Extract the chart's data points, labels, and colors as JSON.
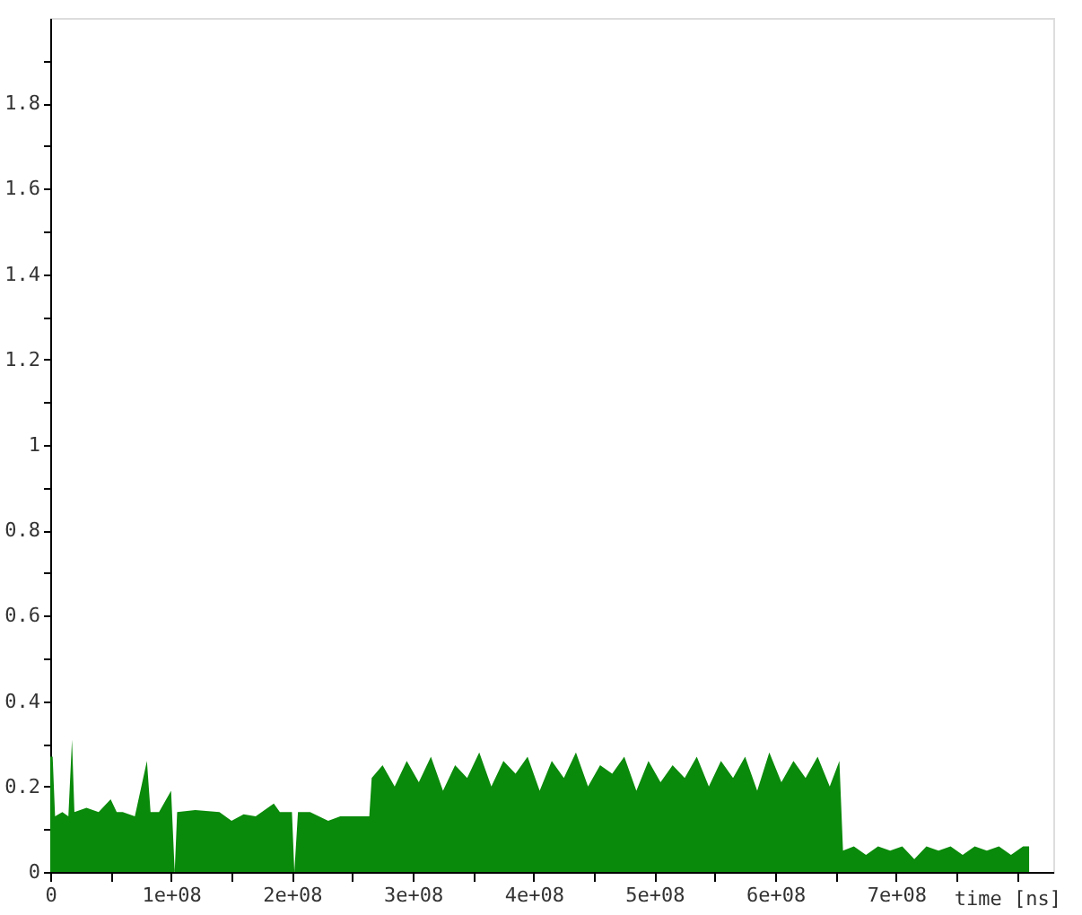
{
  "chart_data": {
    "type": "area",
    "xlabel": "time [ns]",
    "xlim": [
      0,
      830000000
    ],
    "ylim": [
      0,
      2.0
    ],
    "xticks": [
      0,
      {
        "value": 50000000,
        "label": null
      },
      {
        "value": 100000000,
        "label": "1e+08"
      },
      {
        "value": 150000000,
        "label": null
      },
      {
        "value": 200000000,
        "label": "2e+08"
      },
      {
        "value": 250000000,
        "label": null
      },
      {
        "value": 300000000,
        "label": "3e+08"
      },
      {
        "value": 350000000,
        "label": null
      },
      {
        "value": 400000000,
        "label": "4e+08"
      },
      {
        "value": 450000000,
        "label": null
      },
      {
        "value": 500000000,
        "label": "5e+08"
      },
      {
        "value": 550000000,
        "label": null
      },
      {
        "value": 600000000,
        "label": "6e+08"
      },
      {
        "value": 650000000,
        "label": null
      },
      {
        "value": 700000000,
        "label": "7e+08"
      },
      {
        "value": 750000000,
        "label": null
      },
      {
        "value": 800000000,
        "label": null
      }
    ],
    "yticks": [
      0,
      {
        "value": 0.1,
        "label": null
      },
      0.2,
      {
        "value": 0.3,
        "label": null
      },
      0.4,
      {
        "value": 0.5,
        "label": null
      },
      0.6,
      {
        "value": 0.7,
        "label": null
      },
      0.8,
      {
        "value": 0.9,
        "label": null
      },
      1,
      {
        "value": 1.1,
        "label": null
      },
      1.2,
      {
        "value": 1.3,
        "label": null
      },
      1.4,
      {
        "value": 1.5,
        "label": null
      },
      1.6,
      {
        "value": 1.7,
        "label": null
      },
      1.8,
      {
        "value": 1.9,
        "label": null
      }
    ],
    "grid": false,
    "series": [
      {
        "color": "#0a8a0a",
        "x": [
          0,
          2000000,
          4000000,
          10000000,
          15000000,
          18000000,
          20000000,
          30000000,
          40000000,
          50000000,
          55000000,
          60000000,
          70000000,
          80000000,
          83000000,
          90000000,
          100000000,
          103000000,
          105000000,
          120000000,
          140000000,
          150000000,
          160000000,
          170000000,
          185000000,
          190000000,
          200000000,
          202000000,
          205000000,
          215000000,
          230000000,
          240000000,
          264000000,
          266000000,
          275000000,
          285000000,
          295000000,
          305000000,
          315000000,
          325000000,
          335000000,
          345000000,
          355000000,
          365000000,
          375000000,
          385000000,
          395000000,
          405000000,
          415000000,
          425000000,
          435000000,
          445000000,
          455000000,
          465000000,
          475000000,
          485000000,
          495000000,
          505000000,
          515000000,
          525000000,
          535000000,
          545000000,
          555000000,
          565000000,
          575000000,
          585000000,
          595000000,
          605000000,
          615000000,
          625000000,
          635000000,
          645000000,
          653000000,
          656000000,
          665000000,
          675000000,
          685000000,
          695000000,
          705000000,
          715000000,
          725000000,
          735000000,
          745000000,
          755000000,
          765000000,
          775000000,
          785000000,
          795000000,
          805000000,
          810000000
        ],
        "values": [
          0.27,
          0.27,
          0.13,
          0.14,
          0.13,
          0.31,
          0.14,
          0.15,
          0.14,
          0.17,
          0.14,
          0.14,
          0.13,
          0.26,
          0.14,
          0.14,
          0.19,
          0.0,
          0.14,
          0.145,
          0.14,
          0.12,
          0.135,
          0.13,
          0.16,
          0.14,
          0.14,
          0.0,
          0.14,
          0.14,
          0.12,
          0.13,
          0.13,
          0.22,
          0.25,
          0.2,
          0.26,
          0.21,
          0.27,
          0.19,
          0.25,
          0.22,
          0.28,
          0.2,
          0.26,
          0.23,
          0.27,
          0.19,
          0.26,
          0.22,
          0.28,
          0.2,
          0.25,
          0.23,
          0.27,
          0.19,
          0.26,
          0.21,
          0.25,
          0.22,
          0.27,
          0.2,
          0.26,
          0.22,
          0.27,
          0.19,
          0.28,
          0.21,
          0.26,
          0.22,
          0.27,
          0.2,
          0.26,
          0.05,
          0.06,
          0.04,
          0.06,
          0.05,
          0.06,
          0.03,
          0.06,
          0.05,
          0.06,
          0.04,
          0.06,
          0.05,
          0.06,
          0.04,
          0.06,
          0.06
        ]
      }
    ]
  }
}
